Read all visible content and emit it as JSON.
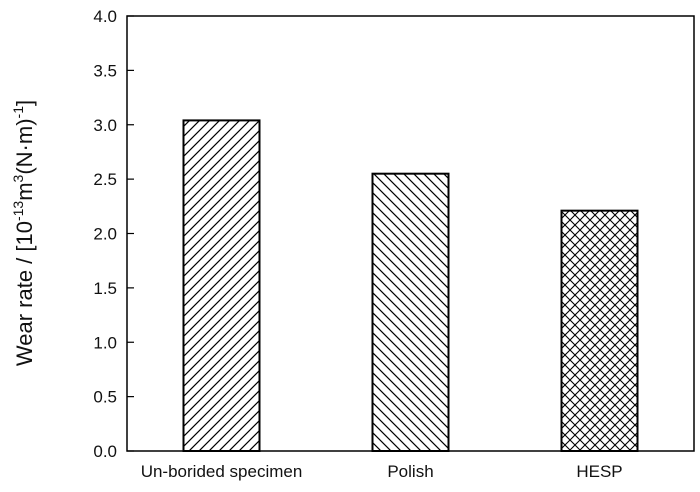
{
  "chart_data": {
    "type": "bar",
    "categories": [
      "Un-borided specimen",
      "Polish",
      "HESP"
    ],
    "values": [
      3.04,
      2.55,
      2.21
    ],
    "title": "",
    "xlabel": "",
    "ylabel": {
      "prefix": "Wear rate / [10",
      "exp1": "-13",
      "mid1": "m",
      "exp2": "3",
      "mid2": "(N·m)",
      "exp3": "-1",
      "suffix": "]"
    },
    "ylim": [
      0,
      4
    ],
    "yticks": [
      "0.0",
      "0.5",
      "1.0",
      "1.5",
      "2.0",
      "2.5",
      "3.0",
      "3.5",
      "4.0"
    ],
    "grid": false,
    "legend": "none",
    "patterns": [
      "diagonal-forward",
      "diagonal-backward",
      "crosshatch"
    ],
    "colors": {
      "bar_fill": "#ffffff",
      "bar_stroke": "#000000",
      "axis": "#000000"
    }
  }
}
